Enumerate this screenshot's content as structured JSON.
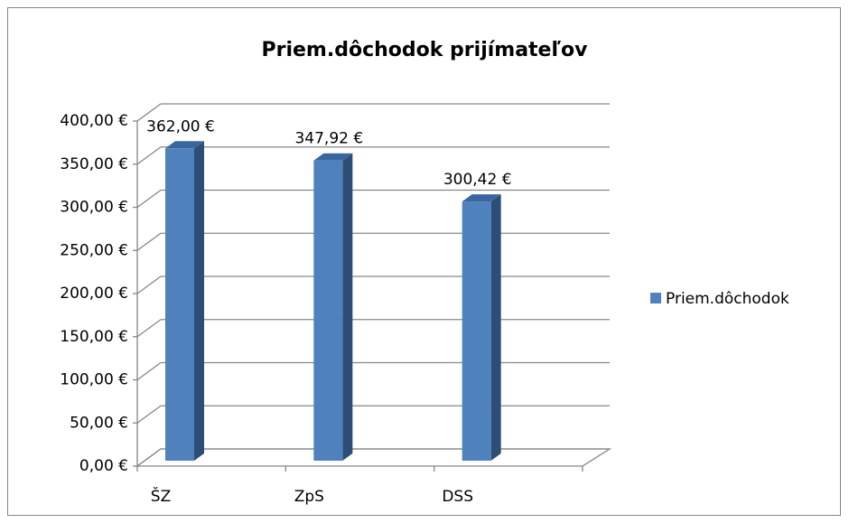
{
  "chart_data": {
    "type": "bar3d",
    "title": "Priem.dôchodok prijímateľov",
    "categories": [
      "ŠZ",
      "ZpS",
      "DSS"
    ],
    "series": [
      {
        "name": "Priem.dôchodok",
        "color": "#4f81bd",
        "values": [
          362,
          347.92,
          300.42
        ],
        "value_labels": [
          "362,00 €",
          "347,92 €",
          "300,42 €"
        ]
      }
    ],
    "ylim": [
      0,
      400
    ],
    "yticks": [
      {
        "value": 0,
        "label": "0,00 €"
      },
      {
        "value": 50,
        "label": "50,00 €"
      },
      {
        "value": 100,
        "label": "100,00 €"
      },
      {
        "value": 150,
        "label": "150,00 €"
      },
      {
        "value": 200,
        "label": "200,00 €"
      },
      {
        "value": 250,
        "label": "250,00 €"
      },
      {
        "value": 300,
        "label": "300,00 €"
      },
      {
        "value": 350,
        "label": "350,00 €"
      },
      {
        "value": 400,
        "label": "400,00 €"
      }
    ],
    "grid": true,
    "legend": "right"
  }
}
